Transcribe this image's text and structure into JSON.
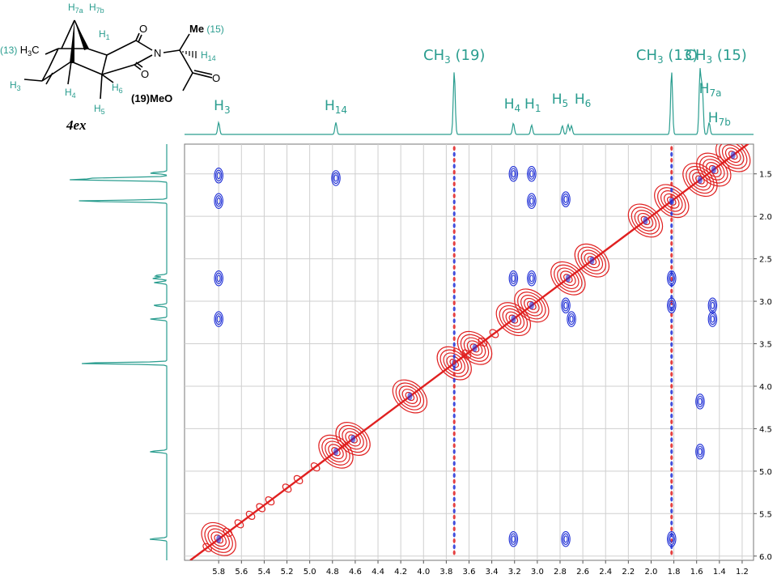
{
  "chart_data": {
    "type": "heatmap",
    "x_axis": {
      "range": [
        6.1,
        1.1
      ],
      "reversed": true,
      "ticks": [
        5.8,
        5.6,
        5.4,
        5.2,
        5.0,
        4.8,
        4.6,
        4.4,
        4.2,
        4.0,
        3.8,
        3.6,
        3.4,
        3.2,
        3.0,
        2.8,
        2.6,
        2.4,
        2.2,
        2.0,
        1.8,
        1.6,
        1.4,
        1.2
      ]
    },
    "y_axis": {
      "range": [
        1.15,
        6.05
      ],
      "reversed": true,
      "ticks": [
        1.5,
        2.0,
        2.5,
        3.0,
        3.5,
        4.0,
        4.5,
        5.0,
        5.5,
        6.0
      ]
    },
    "grid": true,
    "colors": {
      "positive": "#e02020",
      "negative": "#1f2fd6",
      "projection": "#2a9d8f"
    },
    "projection_peaks": [
      {
        "ppm": 5.8,
        "height": 0.18
      },
      {
        "ppm": 4.77,
        "height": 0.18
      },
      {
        "ppm": 3.73,
        "height": 0.95
      },
      {
        "ppm": 3.21,
        "height": 0.17
      },
      {
        "ppm": 3.05,
        "height": 0.14
      },
      {
        "ppm": 2.78,
        "height": 0.13
      },
      {
        "ppm": 2.73,
        "height": 0.15
      },
      {
        "ppm": 2.7,
        "height": 0.13
      },
      {
        "ppm": 1.82,
        "height": 0.95
      },
      {
        "ppm": 1.57,
        "height": 0.95
      },
      {
        "ppm": 1.55,
        "height": 0.7
      },
      {
        "ppm": 1.49,
        "height": 0.18
      }
    ],
    "peak_labels": [
      {
        "text": "H",
        "sub": "3",
        "ppm": 5.77,
        "level": "low"
      },
      {
        "text": "H",
        "sub": "14",
        "ppm": 4.77,
        "level": "low"
      },
      {
        "text": "CH",
        "sub": "3",
        "after": " (19)",
        "ppm": 3.73,
        "level": "top"
      },
      {
        "text": "H",
        "sub": "4",
        "ppm": 3.22,
        "level": "mid"
      },
      {
        "text": "H",
        "sub": "1",
        "ppm": 3.04,
        "level": "mid"
      },
      {
        "text": "H",
        "sub": "5",
        "ppm": 2.8,
        "level": "mid2"
      },
      {
        "text": "H",
        "sub": "6",
        "ppm": 2.6,
        "level": "mid2"
      },
      {
        "text": "CH",
        "sub": "3",
        "after": " (13)",
        "ppm": 1.86,
        "level": "top"
      },
      {
        "text": "CH",
        "sub": "3",
        "after": " (15)",
        "ppm": 1.43,
        "level": "top"
      },
      {
        "text": "H",
        "sub": "7a",
        "ppm": 1.48,
        "level": "upper"
      },
      {
        "text": "H",
        "sub": "7b",
        "ppm": 1.4,
        "level": "lower"
      }
    ],
    "diagonal_peaks": [
      5.8,
      4.77,
      4.62,
      4.12,
      3.73,
      3.55,
      3.21,
      3.05,
      2.73,
      2.52,
      2.05,
      1.82,
      1.57,
      1.45,
      1.28
    ],
    "cross_peaks": [
      {
        "x": 5.8,
        "y": 1.52
      },
      {
        "x": 5.8,
        "y": 1.82
      },
      {
        "x": 5.8,
        "y": 2.73
      },
      {
        "x": 5.8,
        "y": 3.21
      },
      {
        "x": 4.77,
        "y": 1.55
      },
      {
        "x": 3.21,
        "y": 1.5
      },
      {
        "x": 3.21,
        "y": 2.73
      },
      {
        "x": 3.21,
        "y": 5.8
      },
      {
        "x": 3.05,
        "y": 1.5
      },
      {
        "x": 3.05,
        "y": 1.82
      },
      {
        "x": 3.05,
        "y": 2.73
      },
      {
        "x": 2.75,
        "y": 1.8
      },
      {
        "x": 2.75,
        "y": 3.05
      },
      {
        "x": 2.75,
        "y": 5.8
      },
      {
        "x": 2.7,
        "y": 3.21
      },
      {
        "x": 1.57,
        "y": 4.77
      },
      {
        "x": 1.57,
        "y": 4.18
      },
      {
        "x": 1.46,
        "y": 3.05
      },
      {
        "x": 1.46,
        "y": 3.21
      },
      {
        "x": 1.82,
        "y": 2.73
      },
      {
        "x": 1.82,
        "y": 3.05
      },
      {
        "x": 1.82,
        "y": 5.8
      }
    ],
    "t1_noise_columns": [
      3.73,
      1.82
    ]
  },
  "molecule": {
    "compound_label": "4ex",
    "atom_labels": {
      "h7a": "H",
      "h7a_sub": "7a",
      "h7b": "H",
      "h7b_sub": "7b",
      "h1": "H",
      "h1_sub": "1",
      "me15": "Me",
      "me15_tag": " (15)",
      "h14": "H",
      "h14_sub": "14",
      "c13_tag": "(13) ",
      "c13": "H",
      "c13_sub": "3",
      "c13_end": "C",
      "n": "N",
      "o1": "O",
      "o2": "O",
      "o3": "O",
      "o4": "O",
      "h3": "H",
      "h3_sub": "3",
      "h4": "H",
      "h4_sub": "4",
      "h6": "H",
      "h6_sub": "6",
      "h5": "H",
      "h5_sub": "5",
      "me19": "(19)MeO"
    }
  }
}
